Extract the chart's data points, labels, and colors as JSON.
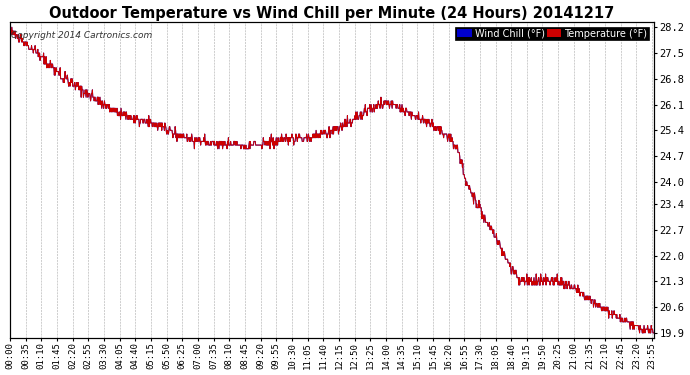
{
  "title": "Outdoor Temperature vs Wind Chill per Minute (24 Hours) 20141217",
  "copyright": "Copyright 2014 Cartronics.com",
  "ylabel_right_ticks": [
    28.2,
    27.5,
    26.8,
    26.1,
    25.4,
    24.7,
    24.0,
    23.4,
    22.7,
    22.0,
    21.3,
    20.6,
    19.9
  ],
  "ymin": 19.9,
  "ymax": 28.2,
  "legend_wind_chill_label": "Wind Chill (°F)",
  "legend_temp_label": "Temperature (°F)",
  "wind_chill_color": "#0000cc",
  "temp_color": "#cc0000",
  "line_color": "#cc0000",
  "bg_color": "#ffffff",
  "plot_bg_color": "#ffffff",
  "grid_color": "#aaaaaa",
  "title_fontsize": 10.5,
  "tick_fontsize": 6.5,
  "copyright_fontsize": 6.5
}
